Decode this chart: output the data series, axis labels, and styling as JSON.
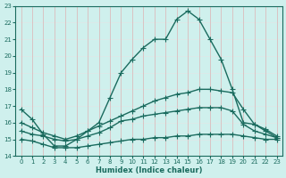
{
  "xlabel": "Humidex (Indice chaleur)",
  "xlim": [
    -0.5,
    23.5
  ],
  "ylim": [
    14,
    23
  ],
  "yticks": [
    14,
    15,
    16,
    17,
    18,
    19,
    20,
    21,
    22,
    23
  ],
  "xticks": [
    0,
    1,
    2,
    3,
    4,
    5,
    6,
    7,
    8,
    9,
    10,
    11,
    12,
    13,
    14,
    15,
    16,
    17,
    18,
    19,
    20,
    21,
    22,
    23
  ],
  "background_color": "#cff0ed",
  "grid_color_h": "#dde8e8",
  "grid_color_v": "#dbbcbc",
  "line_color": "#1a6b5e",
  "lines": [
    {
      "x": [
        0,
        1,
        2,
        3,
        4,
        5,
        6,
        7,
        8,
        9,
        10,
        11,
        12,
        13,
        14,
        15,
        16,
        17,
        18,
        19,
        20,
        21,
        22,
        23
      ],
      "y": [
        16.8,
        16.2,
        15.3,
        14.6,
        14.6,
        15.0,
        15.5,
        16.0,
        17.5,
        19.0,
        19.8,
        20.5,
        21.0,
        21.0,
        22.2,
        22.7,
        22.2,
        21.0,
        19.8,
        18.0,
        16.0,
        15.9,
        15.5,
        15.1
      ],
      "marker": "+",
      "markersize": 4,
      "linewidth": 1.0
    },
    {
      "x": [
        0,
        1,
        2,
        3,
        4,
        5,
        6,
        7,
        8,
        9,
        10,
        11,
        12,
        13,
        14,
        15,
        16,
        17,
        18,
        19,
        20,
        21,
        22,
        23
      ],
      "y": [
        16.0,
        15.7,
        15.4,
        15.2,
        15.0,
        15.2,
        15.5,
        15.8,
        16.1,
        16.4,
        16.7,
        17.0,
        17.3,
        17.5,
        17.7,
        17.8,
        18.0,
        18.0,
        17.9,
        17.8,
        16.8,
        15.9,
        15.6,
        15.2
      ],
      "marker": "+",
      "markersize": 4,
      "linewidth": 1.0
    },
    {
      "x": [
        0,
        1,
        2,
        3,
        4,
        5,
        6,
        7,
        8,
        9,
        10,
        11,
        12,
        13,
        14,
        15,
        16,
        17,
        18,
        19,
        20,
        21,
        22,
        23
      ],
      "y": [
        15.5,
        15.3,
        15.2,
        15.0,
        14.9,
        15.0,
        15.2,
        15.4,
        15.7,
        16.1,
        16.2,
        16.4,
        16.5,
        16.6,
        16.7,
        16.8,
        16.9,
        16.9,
        16.9,
        16.7,
        15.9,
        15.5,
        15.3,
        15.1
      ],
      "marker": "+",
      "markersize": 4,
      "linewidth": 1.0
    },
    {
      "x": [
        0,
        1,
        2,
        3,
        4,
        5,
        6,
        7,
        8,
        9,
        10,
        11,
        12,
        13,
        14,
        15,
        16,
        17,
        18,
        19,
        20,
        21,
        22,
        23
      ],
      "y": [
        15.0,
        14.9,
        14.7,
        14.5,
        14.5,
        14.5,
        14.6,
        14.7,
        14.8,
        14.9,
        15.0,
        15.0,
        15.1,
        15.1,
        15.2,
        15.2,
        15.3,
        15.3,
        15.3,
        15.3,
        15.2,
        15.1,
        15.0,
        15.0
      ],
      "marker": "+",
      "markersize": 4,
      "linewidth": 1.0
    }
  ]
}
